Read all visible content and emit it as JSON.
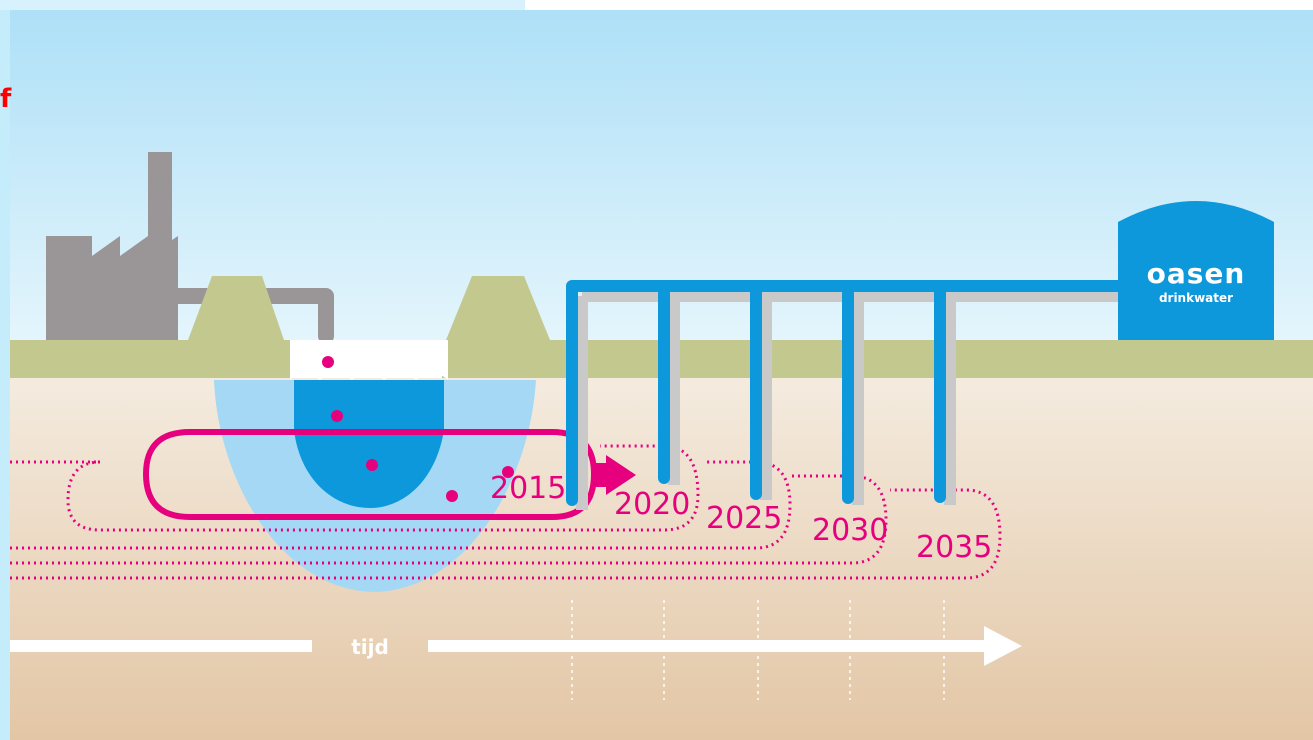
{
  "edge_text": "f",
  "timeline": {
    "label": "tijd",
    "years": [
      "2015",
      "2020",
      "2025",
      "2030",
      "2035"
    ]
  },
  "brand": {
    "name": "oasen",
    "tagline": "drinkwater"
  },
  "colors": {
    "sky_top": "#aee0f7",
    "sky_bottom": "#e4f5fc",
    "grass": "#c3c98e",
    "soil_top": "#f4ebdf",
    "soil_bottom": "#e3c6a5",
    "water_deep": "#0d98dc",
    "water_light": "#a5d8f4",
    "pipe_blue": "#0d98dc",
    "factory_gray": "#9a9597",
    "accent_magenta": "#e6007e",
    "left_border": "#c5ecfb"
  }
}
